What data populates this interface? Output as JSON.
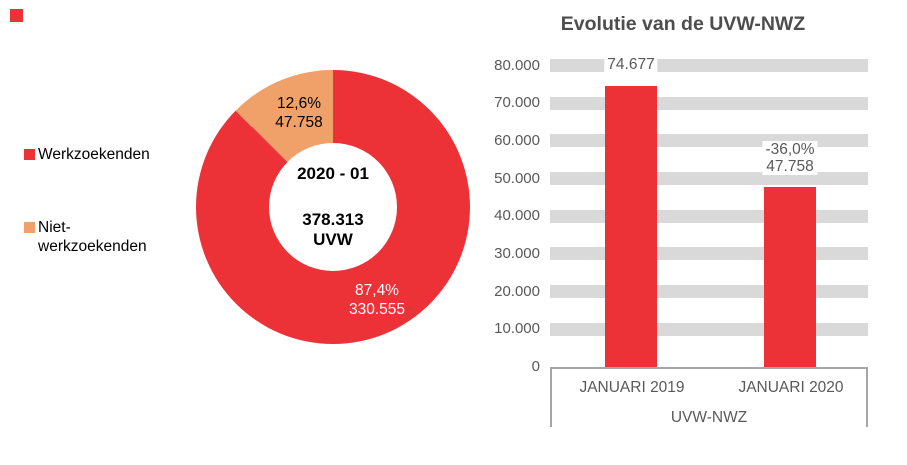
{
  "deco": {
    "color": "#ED3237"
  },
  "colors": {
    "red": "#ED3237",
    "orange": "#F0A169",
    "gridline": "#D9D9D9",
    "axis_line": "#A6A6A6",
    "axis_text": "#595959",
    "title_text": "#4D4D4D"
  },
  "chart_data": [
    {
      "type": "pie",
      "subtype": "donut",
      "legend_position": "left",
      "slices": [
        {
          "label": "Werkzoekenden",
          "value": 330555,
          "pct_value": 87.4,
          "pct_label": "87,4%",
          "value_label": "330.555",
          "label_text": "87,4%\n330.555",
          "color": "#ED3237"
        },
        {
          "label": "Niet-\nwerkzoekenden",
          "value": 47758,
          "pct_value": 12.6,
          "pct_label": "12,6%",
          "value_label": "47.758",
          "label_text": "12,6%\n47.758",
          "color": "#F0A169"
        }
      ],
      "center": {
        "period": "2020 - 01",
        "total": "378.313",
        "unit": "UVW"
      }
    },
    {
      "type": "bar",
      "title": "Evolutie van de UVW-NWZ",
      "categories": [
        "JANUARI 2019",
        "JANUARI 2020"
      ],
      "values": [
        74677,
        47758
      ],
      "value_labels": [
        "74.677",
        "-36,0%\n47.758"
      ],
      "xlabel": "UVW-NWZ",
      "ylabel": "",
      "ylim": [
        0,
        80000
      ],
      "grid": "on",
      "legend_position": "none",
      "bar_color": "#ED3237",
      "gridline_color": "#D9D9D9",
      "axis_color": "#A6A6A6",
      "yticks": [
        {
          "label": "80.000",
          "value": 80000
        },
        {
          "label": "70.000",
          "value": 70000
        },
        {
          "label": "60.000",
          "value": 60000
        },
        {
          "label": "50.000",
          "value": 50000
        },
        {
          "label": "40.000",
          "value": 40000
        },
        {
          "label": "30.000",
          "value": 30000
        },
        {
          "label": "20.000",
          "value": 20000
        },
        {
          "label": "10.000",
          "value": 10000
        },
        {
          "label": "0",
          "value": 0
        }
      ]
    }
  ]
}
